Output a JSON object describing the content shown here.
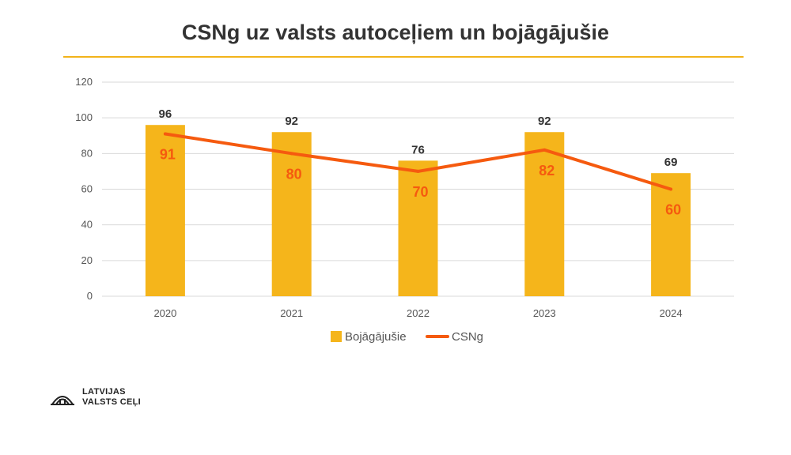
{
  "chart_data": {
    "type": "bar",
    "title": "CSNg uz valsts autoceļiem un bojāgājušie",
    "categories": [
      "2020",
      "2021",
      "2022",
      "2023",
      "2024"
    ],
    "series": [
      {
        "name": "Bojāgājušie",
        "type": "bar",
        "values": [
          96,
          92,
          76,
          92,
          69
        ],
        "color": "#f5b51b"
      },
      {
        "name": "CSNg",
        "type": "line",
        "values": [
          91,
          80,
          70,
          82,
          60
        ],
        "color": "#f55a0f"
      }
    ],
    "ylim": [
      0,
      120
    ],
    "yticks": [
      0,
      20,
      40,
      60,
      80,
      100,
      120
    ],
    "grid": true,
    "legend": "bottom-center"
  },
  "logo": {
    "line1": "LATVIJAS",
    "line2": "VALSTS CEĻI"
  },
  "colors": {
    "accent_rule": "#f2b31a",
    "grid": "#d9d9d9"
  }
}
